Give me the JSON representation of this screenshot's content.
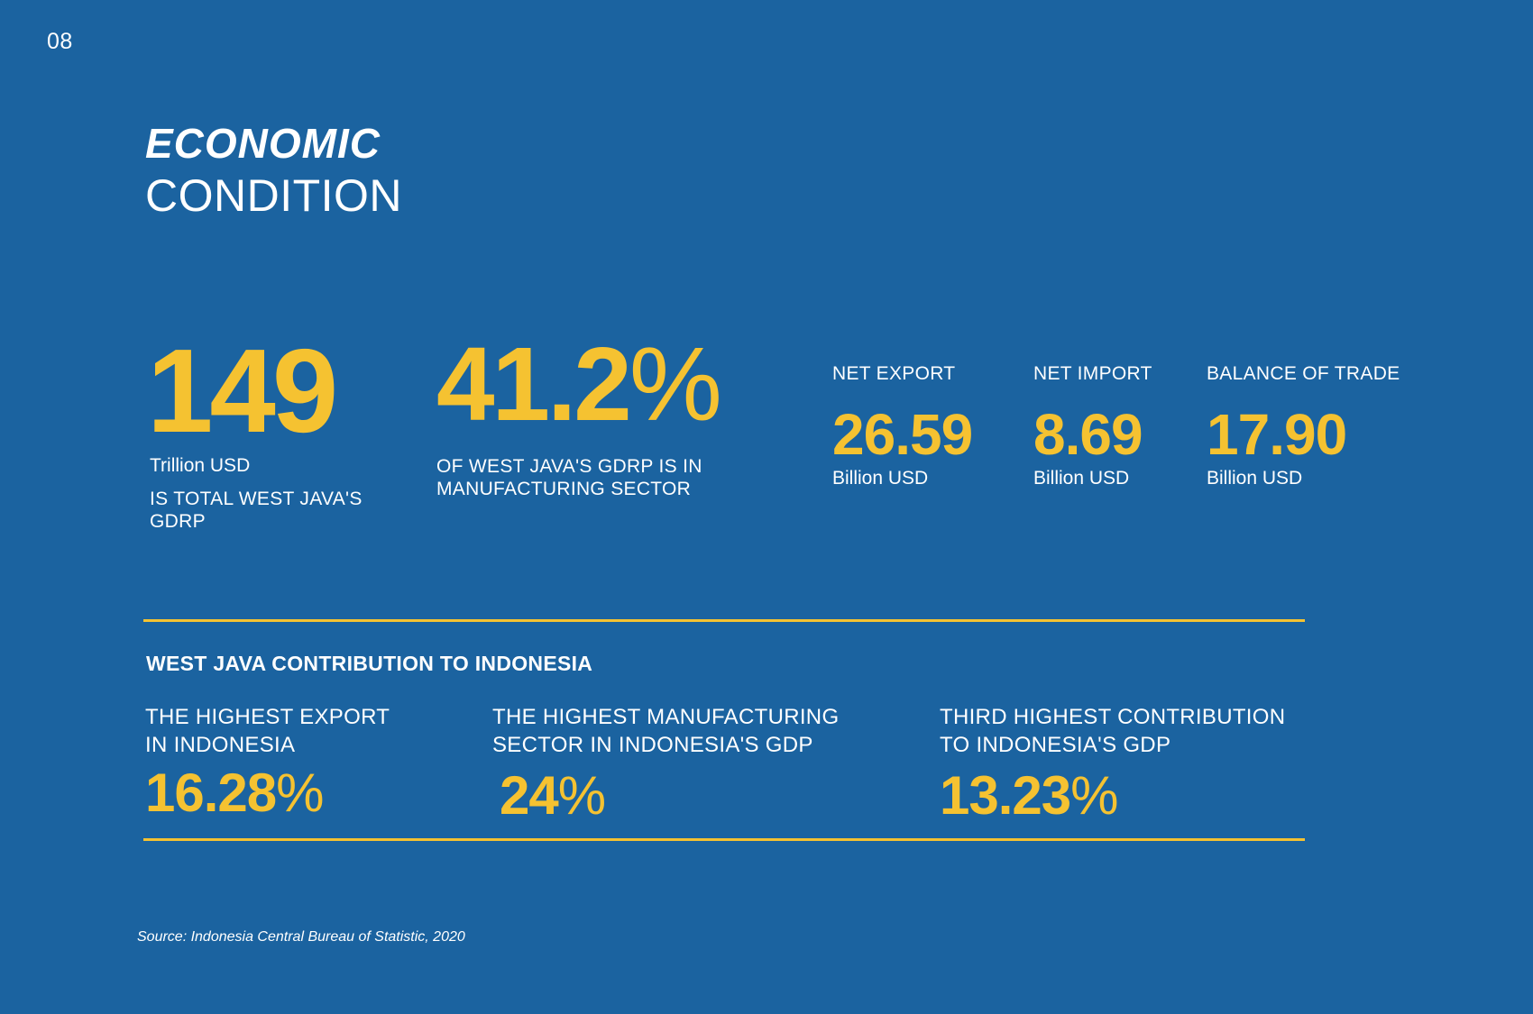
{
  "page": {
    "number": "08"
  },
  "title": {
    "line1": "ECONOMIC",
    "line2": "CONDITION"
  },
  "gdrp": {
    "value": "149",
    "unit": "Trillion USD",
    "caption_line1": "IS TOTAL WEST JAVA'S",
    "caption_line2": "GDRP"
  },
  "manufacturing_share": {
    "value": "41.2",
    "percent_sign": "%",
    "caption_line1": "OF WEST JAVA'S GDRP IS IN",
    "caption_line2": "MANUFACTURING SECTOR"
  },
  "trade": {
    "net_export": {
      "label": "NET EXPORT",
      "value": "26.59",
      "unit": "Billion USD"
    },
    "net_import": {
      "label": "NET IMPORT",
      "value": "8.69",
      "unit": "Billion USD"
    },
    "balance": {
      "label": "BALANCE OF TRADE",
      "value": "17.90",
      "unit": "Billion USD"
    }
  },
  "contribution": {
    "heading": "WEST JAVA CONTRIBUTION TO INDONESIA",
    "items": [
      {
        "line1": "THE HIGHEST EXPORT",
        "line2": "IN INDONESIA",
        "value": "16.28",
        "percent_sign": "%"
      },
      {
        "line1": "THE HIGHEST MANUFACTURING",
        "line2": "SECTOR IN INDONESIA'S GDP",
        "value": "24",
        "percent_sign": "%"
      },
      {
        "line1": "THIRD HIGHEST CONTRIBUTION",
        "line2": "TO INDONESIA'S GDP",
        "value": "13.23",
        "percent_sign": "%"
      }
    ]
  },
  "source": "Source: Indonesia Central Bureau of Statistic, 2020",
  "colors": {
    "background": "#1b63a0",
    "accent": "#f5c231",
    "text": "#ffffff"
  }
}
